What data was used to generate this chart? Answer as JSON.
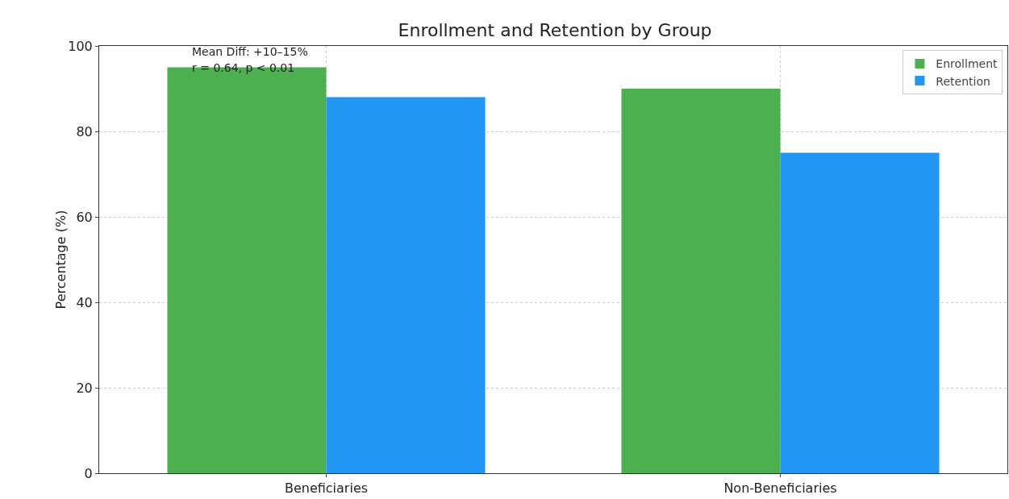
{
  "chart_data": {
    "type": "bar",
    "title": "Enrollment and Retention by Group",
    "ylabel": "Percentage (%)",
    "categories": [
      "Beneficiaries",
      "Non-Beneficiaries"
    ],
    "series": [
      {
        "name": "Enrollment",
        "color": "#4caf50",
        "values": [
          95,
          90
        ]
      },
      {
        "name": "Retention",
        "color": "#2196f3",
        "values": [
          88,
          75
        ]
      }
    ],
    "ylim": [
      0,
      100
    ],
    "yticks": [
      0,
      20,
      40,
      60,
      80,
      100
    ],
    "grid": true,
    "legend": "top right",
    "annotations": [
      "Mean Diff: +10–15%",
      "r = 0.64, p < 0.01"
    ]
  }
}
